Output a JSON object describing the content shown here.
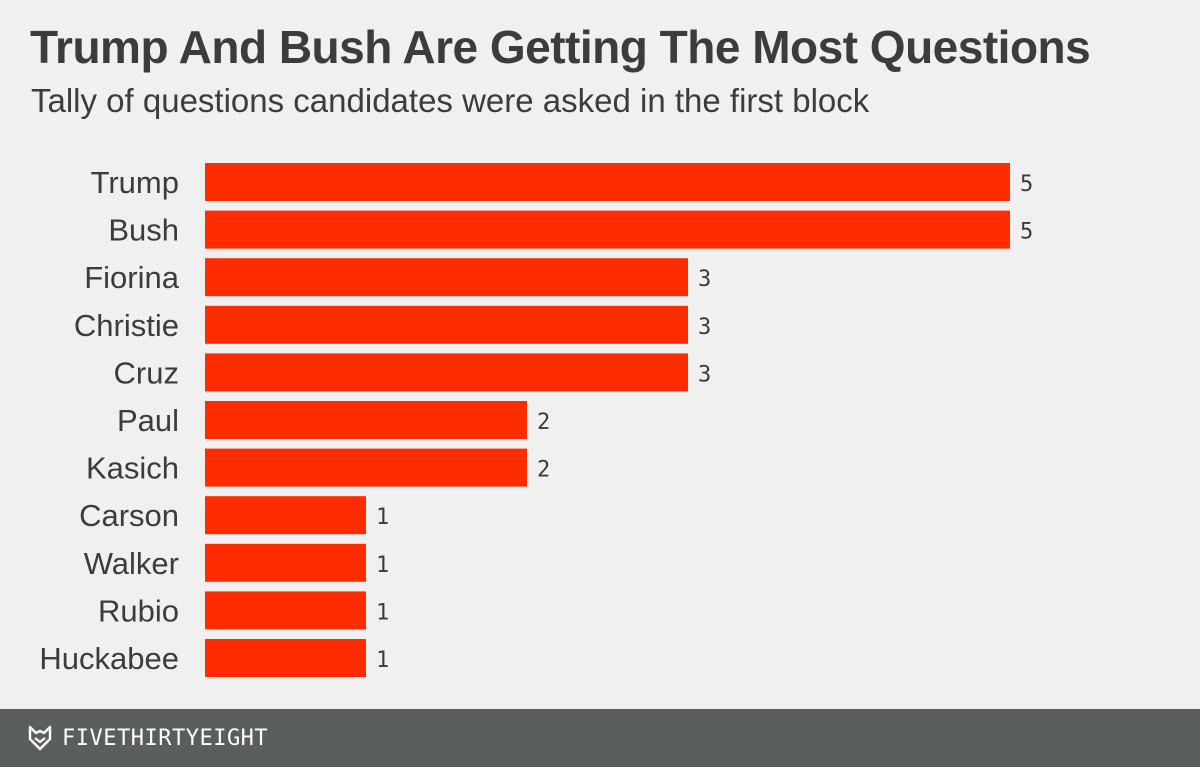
{
  "chart_data": {
    "type": "bar",
    "orientation": "horizontal",
    "title": "Trump And Bush Are Getting The Most Questions",
    "subtitle": "Tally of questions candidates were asked in the first block",
    "categories": [
      "Trump",
      "Bush",
      "Fiorina",
      "Christie",
      "Cruz",
      "Paul",
      "Kasich",
      "Carson",
      "Walker",
      "Rubio",
      "Huckabee"
    ],
    "values": [
      5,
      5,
      3,
      3,
      3,
      2,
      2,
      1,
      1,
      1,
      1
    ],
    "xlim": [
      0,
      5
    ],
    "grid": false,
    "data_labels": true,
    "bar_color": "#ff2c00"
  },
  "footer": {
    "brand": "FIVETHIRTYEIGHT",
    "icon": "fox-logo-icon",
    "background": "#5b5e5f"
  }
}
